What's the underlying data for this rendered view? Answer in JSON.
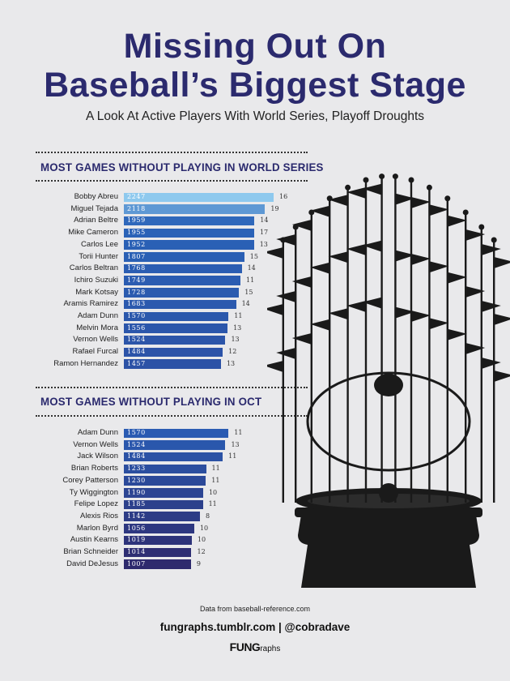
{
  "header": {
    "title_line1": "Missing Out On",
    "title_line2": "Baseball’s Biggest Stage",
    "subtitle": "A Look At Active Players With World Series, Playoff Droughts"
  },
  "colors": {
    "title": "#2b2a6e",
    "bar_top": "#8ec9ee",
    "bar_mid": "#2a63b8",
    "bar_dark": "#2e2a6d",
    "trophy": "#1a1a1a"
  },
  "trophy_icon": "world-series-trophy-silhouette",
  "footer": {
    "source": "Data from baseball-reference.com",
    "links": "fungraphs.tumblr.com | @cobradave",
    "logo_bold": "FUNG",
    "logo_rest": "raphs"
  },
  "chart_data": [
    {
      "type": "bar",
      "orientation": "horizontal",
      "title": "MOST GAMES WITHOUT PLAYING IN WORLD SERIES",
      "categories": [
        "Bobby Abreu",
        "Miguel Tejada",
        "Adrian Beltre",
        "Mike Cameron",
        "Carlos Lee",
        "Torii Hunter",
        "Carlos Beltran",
        "Ichiro Suzuki",
        "Mark Kotsay",
        "Aramis Ramirez",
        "Adam Dunn",
        "Melvin Mora",
        "Vernon Wells",
        "Rafael Furcal",
        "Ramon Hernandez"
      ],
      "values": [
        2247,
        2118,
        1959,
        1955,
        1952,
        1807,
        1768,
        1749,
        1728,
        1683,
        1570,
        1556,
        1524,
        1484,
        1457
      ],
      "seasons": [
        16,
        19,
        14,
        17,
        13,
        15,
        14,
        11,
        15,
        14,
        11,
        13,
        13,
        12,
        13
      ],
      "xlim": [
        0,
        2247
      ]
    },
    {
      "type": "bar",
      "orientation": "horizontal",
      "title": "MOST GAMES WITHOUT PLAYING IN OCT",
      "categories": [
        "Adam Dunn",
        "Vernon Wells",
        "Jack Wilson",
        "Brian Roberts",
        "Corey Patterson",
        "Ty Wiggington",
        "Felipe Lopez",
        "Alexis Rios",
        "Marlon Byrd",
        "Austin Kearns",
        "Brian Schneider",
        "David DeJesus"
      ],
      "values": [
        1570,
        1524,
        1484,
        1233,
        1230,
        1190,
        1185,
        1142,
        1056,
        1019,
        1014,
        1007
      ],
      "seasons": [
        11,
        13,
        11,
        11,
        11,
        10,
        11,
        8,
        10,
        10,
        12,
        9
      ],
      "xlim": [
        0,
        2247
      ]
    }
  ]
}
